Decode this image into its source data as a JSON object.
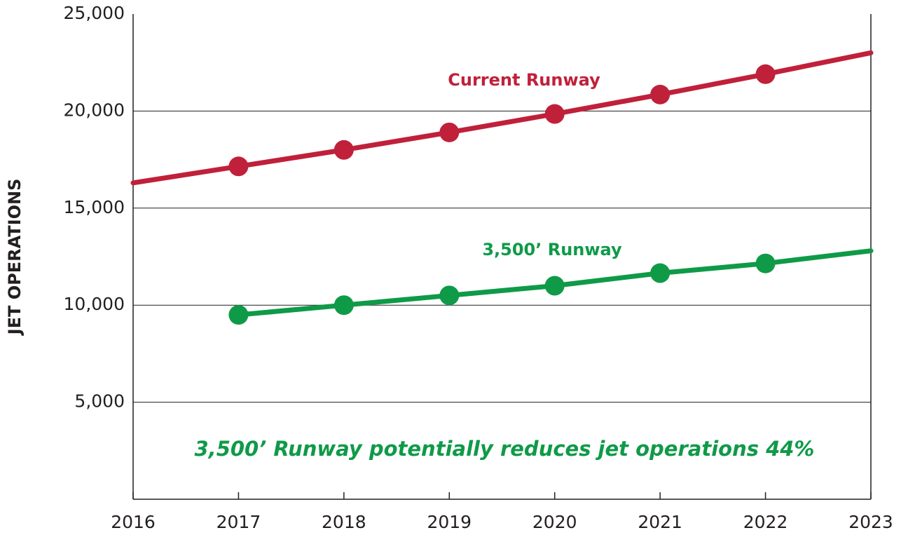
{
  "chart_data": {
    "type": "line",
    "ylabel": "JET OPERATIONS",
    "annotation": "3,500’ Runway potentially reduces jet operations 44%",
    "annotation_color": "#0f9a48",
    "x": [
      2016,
      2017,
      2018,
      2019,
      2020,
      2021,
      2022,
      2023
    ],
    "series": [
      {
        "name": "Current Runway",
        "color": "#c0203a",
        "values": [
          16300,
          17150,
          18000,
          18900,
          19850,
          20850,
          21900,
          23000
        ]
      },
      {
        "name": "3,500’ Runway",
        "color": "#0f9a48",
        "values": [
          null,
          9500,
          10000,
          10500,
          11000,
          11650,
          12150,
          12800
        ]
      }
    ],
    "xlim": [
      2016,
      2023
    ],
    "xticks": [
      2016,
      2017,
      2018,
      2019,
      2020,
      2021,
      2022,
      2023
    ],
    "ylim": [
      0,
      25000
    ],
    "yticks": [
      {
        "value": 5000,
        "label": "5,000"
      },
      {
        "value": 10000,
        "label": "10,000"
      },
      {
        "value": 15000,
        "label": "15,000"
      },
      {
        "value": 20000,
        "label": "20,000"
      },
      {
        "value": 25000,
        "label": "25,000"
      }
    ],
    "grid": true
  }
}
